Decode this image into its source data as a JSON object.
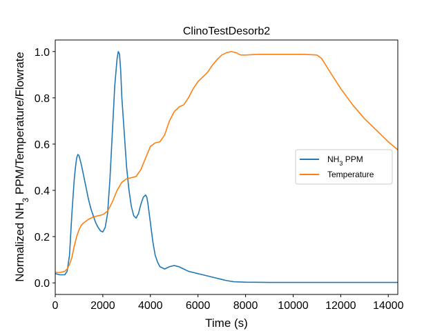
{
  "chart_data": {
    "type": "line",
    "title": "ClinoTestDesorb2",
    "xlabel": "Time (s)",
    "ylabel_prefix": "Normalized NH",
    "ylabel_sub": "3",
    "ylabel_suffix": " PPM/Temperature/Flowrate",
    "xlim": [
      0,
      14400
    ],
    "ylim": [
      -0.05,
      1.05
    ],
    "xticks": [
      0,
      2000,
      4000,
      6000,
      8000,
      10000,
      12000,
      14000
    ],
    "yticks": [
      0.0,
      0.2,
      0.4,
      0.6,
      0.8,
      1.0
    ],
    "xtick_labels": [
      "0",
      "2000",
      "4000",
      "6000",
      "8000",
      "10000",
      "12000",
      "14000"
    ],
    "ytick_labels": [
      "0.0",
      "0.2",
      "0.4",
      "0.6",
      "0.8",
      "1.0"
    ],
    "grid": false,
    "legend_position": "center-right",
    "series": [
      {
        "name_prefix": "NH",
        "name_sub": "3",
        "name_suffix": " PPM",
        "color": "#1f77b4",
        "x": [
          0,
          200,
          400,
          500,
          600,
          700,
          800,
          850,
          900,
          950,
          1000,
          1100,
          1200,
          1300,
          1400,
          1500,
          1600,
          1700,
          1800,
          1900,
          2000,
          2100,
          2200,
          2300,
          2400,
          2500,
          2600,
          2650,
          2700,
          2750,
          2800,
          2900,
          3000,
          3100,
          3200,
          3300,
          3400,
          3500,
          3600,
          3700,
          3800,
          3850,
          3900,
          4000,
          4100,
          4200,
          4300,
          4400,
          4600,
          4800,
          5000,
          5200,
          5400,
          5600,
          5800,
          6000,
          6200,
          6400,
          6600,
          6800,
          7000,
          7200,
          7500,
          8000,
          9000,
          10000,
          11000,
          12000,
          13000,
          14000,
          14400
        ],
        "y": [
          0.04,
          0.035,
          0.035,
          0.05,
          0.12,
          0.3,
          0.45,
          0.5,
          0.54,
          0.555,
          0.55,
          0.51,
          0.46,
          0.41,
          0.36,
          0.32,
          0.29,
          0.26,
          0.24,
          0.225,
          0.22,
          0.24,
          0.3,
          0.45,
          0.65,
          0.85,
          0.97,
          1.0,
          0.99,
          0.92,
          0.8,
          0.65,
          0.5,
          0.4,
          0.33,
          0.29,
          0.28,
          0.3,
          0.34,
          0.37,
          0.38,
          0.37,
          0.34,
          0.26,
          0.18,
          0.12,
          0.09,
          0.07,
          0.06,
          0.07,
          0.075,
          0.07,
          0.06,
          0.05,
          0.045,
          0.04,
          0.035,
          0.03,
          0.025,
          0.02,
          0.015,
          0.01,
          0.005,
          0.003,
          0.002,
          0.002,
          0.002,
          0.002,
          0.002,
          0.002,
          0.002
        ]
      },
      {
        "name": "Temperature",
        "color": "#ff7f0e",
        "x": [
          0,
          200,
          400,
          500,
          600,
          700,
          800,
          900,
          1000,
          1100,
          1200,
          1400,
          1600,
          1800,
          2000,
          2200,
          2400,
          2600,
          2800,
          3000,
          3200,
          3400,
          3600,
          3800,
          4000,
          4200,
          4400,
          4600,
          4800,
          5000,
          5200,
          5400,
          5600,
          5800,
          6000,
          6200,
          6400,
          6600,
          6800,
          7000,
          7200,
          7400,
          7600,
          7800,
          8000,
          8500,
          9000,
          9500,
          10000,
          10500,
          11000,
          11200,
          11500,
          12000,
          12500,
          13000,
          13500,
          14000,
          14400
        ],
        "y": [
          0.045,
          0.045,
          0.05,
          0.06,
          0.08,
          0.11,
          0.16,
          0.2,
          0.23,
          0.25,
          0.26,
          0.275,
          0.285,
          0.29,
          0.295,
          0.31,
          0.35,
          0.4,
          0.435,
          0.45,
          0.455,
          0.46,
          0.49,
          0.54,
          0.59,
          0.605,
          0.61,
          0.64,
          0.7,
          0.74,
          0.76,
          0.77,
          0.8,
          0.84,
          0.87,
          0.89,
          0.91,
          0.94,
          0.965,
          0.985,
          0.995,
          1.0,
          0.995,
          0.985,
          0.985,
          0.988,
          0.988,
          0.988,
          0.988,
          0.988,
          0.985,
          0.97,
          0.92,
          0.84,
          0.77,
          0.71,
          0.66,
          0.61,
          0.575
        ]
      }
    ]
  }
}
